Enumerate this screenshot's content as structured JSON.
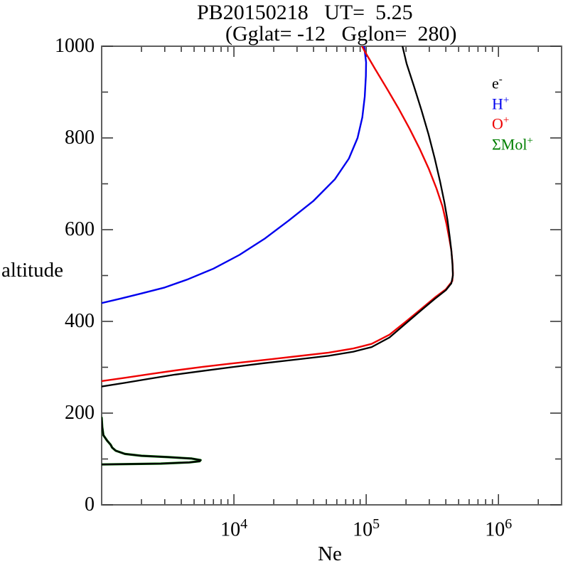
{
  "title": {
    "line1": "PB20150218   UT=  5.25",
    "line2": "(Gglat= -12   Gglon=  280)"
  },
  "legend": {
    "items": [
      {
        "id": "electrons",
        "base": "e",
        "sup": "-",
        "color": "#000000"
      },
      {
        "id": "hydrogen-ions",
        "base": "H",
        "sup": "+",
        "color": "#0000ee"
      },
      {
        "id": "oxygen-ions",
        "base": "O",
        "sup": "+",
        "color": "#ee0000"
      },
      {
        "id": "molecular-ions",
        "base": "ΣMol",
        "sup": "+",
        "color": "#007f00"
      }
    ]
  },
  "chart_data": {
    "type": "line",
    "title": "PB20150218 UT= 5.25 (Gglat= -12 Gglon= 280)",
    "xlabel": "Ne",
    "ylabel": "altitude",
    "x_scale": "log",
    "y_scale": "linear",
    "xlim": [
      1000,
      3000000
    ],
    "ylim": [
      0,
      1000
    ],
    "grid": false,
    "legend_position": "upper-right-inside",
    "frame_color": "#5f5f5f",
    "tick_color": "#3a3a3a",
    "x_major_ticks": [
      {
        "value": 10000,
        "mantissa": "10",
        "exponent": "4"
      },
      {
        "value": 100000,
        "mantissa": "10",
        "exponent": "5"
      },
      {
        "value": 1000000,
        "mantissa": "10",
        "exponent": "6"
      }
    ],
    "y_major_ticks": [
      0,
      200,
      400,
      600,
      800,
      1000
    ],
    "y_minor_ticks": [
      100,
      300,
      500,
      700,
      900
    ],
    "series": [
      {
        "name": "SigmaMol+",
        "color": "#007f00",
        "width": 3.2,
        "points": [
          [
            1000,
            88
          ],
          [
            2800,
            90
          ],
          [
            4600,
            92.5
          ],
          [
            5500,
            95
          ],
          [
            5600,
            97.5
          ],
          [
            4800,
            101
          ],
          [
            3200,
            104
          ],
          [
            2000,
            107
          ],
          [
            1500,
            111
          ],
          [
            1280,
            118
          ],
          [
            1200,
            125
          ],
          [
            1170,
            131
          ],
          [
            1100,
            140
          ],
          [
            1030,
            152
          ],
          [
            1010,
            170
          ],
          [
            1000,
            190
          ]
        ]
      },
      {
        "name": "H+",
        "color": "#0000ee",
        "width": 2.4,
        "points": [
          [
            1000,
            440
          ],
          [
            1400,
            450
          ],
          [
            2000,
            461
          ],
          [
            3000,
            474
          ],
          [
            4500,
            492
          ],
          [
            7000,
            515
          ],
          [
            11000,
            545
          ],
          [
            17000,
            580
          ],
          [
            26000,
            620
          ],
          [
            40000,
            663
          ],
          [
            58000,
            710
          ],
          [
            74000,
            755
          ],
          [
            86000,
            800
          ],
          [
            93500,
            845
          ],
          [
            97500,
            890
          ],
          [
            99500,
            935
          ],
          [
            99800,
            965
          ],
          [
            96500,
            1000
          ]
        ]
      },
      {
        "name": "O+",
        "color": "#ee0000",
        "width": 2.4,
        "points": [
          [
            1000,
            270
          ],
          [
            1500,
            277
          ],
          [
            2300,
            285
          ],
          [
            3600,
            293
          ],
          [
            5800,
            301
          ],
          [
            9500,
            308
          ],
          [
            17000,
            316
          ],
          [
            30000,
            324
          ],
          [
            52000,
            332
          ],
          [
            80000,
            341
          ],
          [
            110000,
            351
          ],
          [
            150000,
            371
          ],
          [
            200000,
            400
          ],
          [
            260000,
            427
          ],
          [
            330000,
            452
          ],
          [
            400000,
            470
          ],
          [
            448000,
            488
          ],
          [
            453000,
            505
          ],
          [
            449000,
            528
          ],
          [
            440000,
            555
          ],
          [
            425000,
            580
          ],
          [
            405000,
            612
          ],
          [
            378000,
            650
          ],
          [
            340000,
            690
          ],
          [
            298000,
            732
          ],
          [
            255000,
            775
          ],
          [
            213000,
            820
          ],
          [
            175000,
            865
          ],
          [
            143000,
            908
          ],
          [
            117000,
            950
          ],
          [
            97000,
            990
          ],
          [
            93000,
            1000
          ]
        ]
      },
      {
        "name": "e-",
        "color": "#000000",
        "width": 2.3,
        "points": [
          [
            1000,
            88
          ],
          [
            2800,
            90
          ],
          [
            4600,
            92.5
          ],
          [
            5500,
            95
          ],
          [
            5600,
            97.5
          ],
          [
            4800,
            101
          ],
          [
            3200,
            104
          ],
          [
            2000,
            107
          ],
          [
            1500,
            111
          ],
          [
            1280,
            118
          ],
          [
            1200,
            125
          ],
          [
            1170,
            131
          ],
          [
            1100,
            140
          ],
          [
            1030,
            152
          ],
          [
            1010,
            170
          ],
          [
            1000,
            190
          ],
          [
            640,
            205
          ],
          [
            640,
            245
          ],
          [
            1000,
            258
          ],
          [
            1500,
            266
          ],
          [
            2300,
            275
          ],
          [
            3600,
            284
          ],
          [
            5800,
            292
          ],
          [
            9500,
            300
          ],
          [
            17000,
            309
          ],
          [
            30000,
            317
          ],
          [
            52000,
            325
          ],
          [
            80000,
            334
          ],
          [
            110000,
            344
          ],
          [
            150000,
            365
          ],
          [
            200000,
            396
          ],
          [
            260000,
            424
          ],
          [
            330000,
            449
          ],
          [
            400000,
            468
          ],
          [
            440000,
            483
          ],
          [
            452000,
            500
          ],
          [
            449000,
            525
          ],
          [
            440000,
            555
          ],
          [
            428000,
            585
          ],
          [
            412000,
            620
          ],
          [
            390000,
            660
          ],
          [
            362000,
            705
          ],
          [
            330000,
            755
          ],
          [
            296000,
            808
          ],
          [
            262000,
            860
          ],
          [
            230000,
            912
          ],
          [
            202000,
            962
          ],
          [
            188000,
            1000
          ]
        ]
      }
    ]
  }
}
